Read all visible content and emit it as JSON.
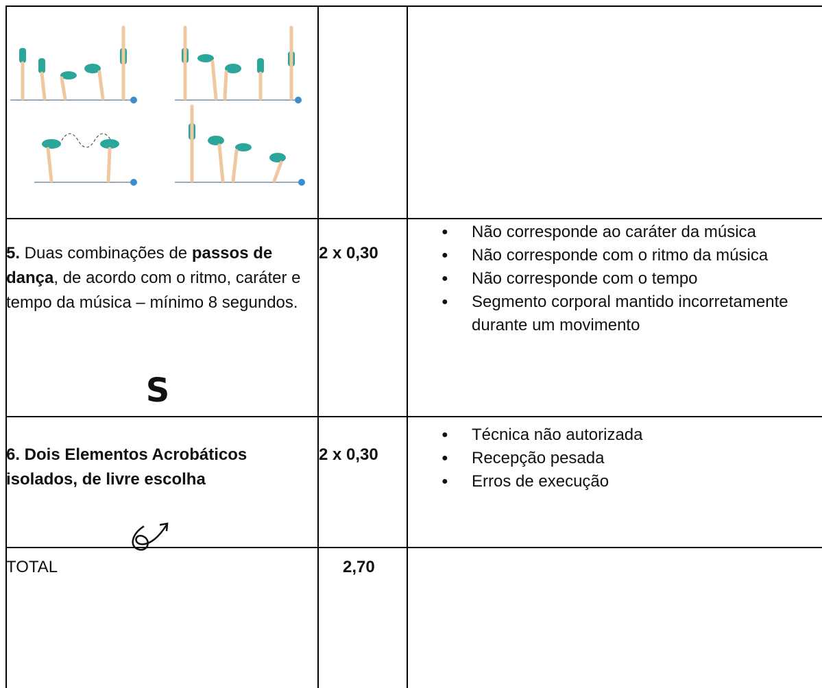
{
  "table": {
    "rows": [
      {
        "criterion": [
          {
            "text": "5.",
            "bold": true
          },
          {
            "text": " Duas combinações de ",
            "bold": false
          },
          {
            "text": "passos de dança",
            "bold": true
          },
          {
            "text": ", de acordo com o ritmo, caráter e tempo da música – mínimo 8 segundos.",
            "bold": false
          }
        ],
        "symbol": "S",
        "value": "2 x 0,30",
        "faults": [
          "Não corresponde ao caráter da música",
          "Não corresponde com o ritmo da música",
          "Não corresponde com o tempo",
          "Segmento corporal mantido incorretamente durante um movimento"
        ]
      },
      {
        "criterion": [
          {
            "text": "6. Dois Elementos Acrobáticos isolados, de livre escolha",
            "bold": true
          }
        ],
        "value": "2 x 0,30",
        "faults": [
          "Técnica não autorizada",
          "Recepção pesada",
          "Erros de execução"
        ]
      }
    ],
    "total": {
      "label": "TOTAL",
      "value": "2,70"
    }
  }
}
